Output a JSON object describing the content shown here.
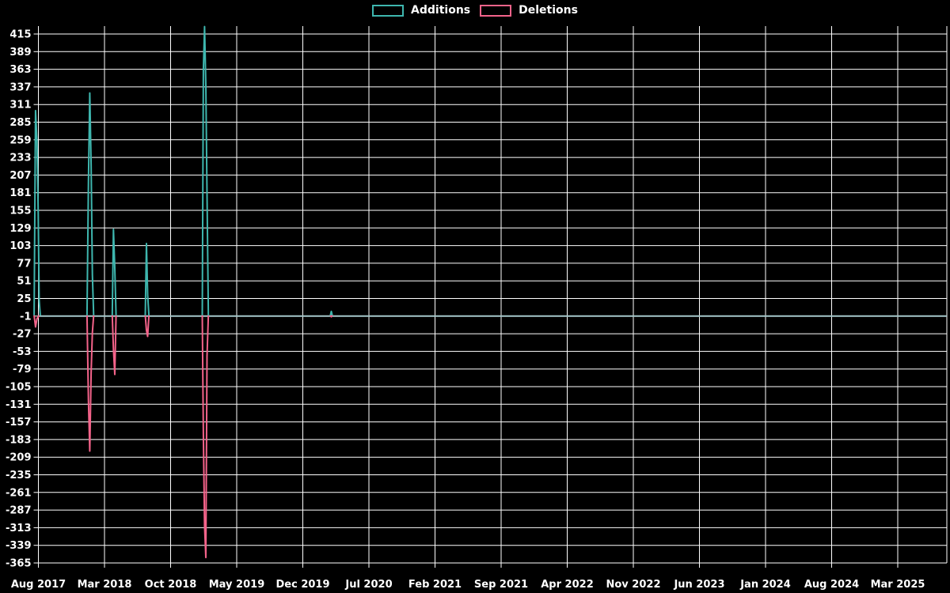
{
  "legend": {
    "additions_label": "Additions",
    "deletions_label": "Deletions",
    "additions_color": "#3eb6ae",
    "deletions_color": "#f4638a"
  },
  "chart_data": {
    "type": "line",
    "title": "",
    "xlabel": "",
    "ylabel": "",
    "legend_position": "top-center",
    "grid": true,
    "background_color": "#000000",
    "gridline_color": "#ffffff",
    "tick_label_color": "#ffffff",
    "zero_line_color": "#a6c8ca",
    "zero_line_value": -1,
    "y_range": [
      -365,
      415
    ],
    "y_ticks": [
      415,
      389,
      363,
      337,
      311,
      285,
      259,
      233,
      207,
      181,
      155,
      129,
      103,
      77,
      51,
      25,
      -1,
      -27,
      -53,
      -79,
      -105,
      -131,
      -157,
      -183,
      -209,
      -235,
      -261,
      -287,
      -313,
      -339,
      -365
    ],
    "x_tick_labels": [
      "Aug 2017",
      "Mar 2018",
      "Oct 2018",
      "May 2019",
      "Dec 2019",
      "Jul 2020",
      "Feb 2021",
      "Sep 2021",
      "Apr 2022",
      "Nov 2022",
      "Jun 2023",
      "Jan 2024",
      "Aug 2024",
      "Mar 2025"
    ],
    "x_tick_interval_months": 7,
    "x_unit": "months_after_Aug_2017",
    "series_names": [
      "Additions",
      "Deletions"
    ],
    "series_colors": [
      "#3eb6ae",
      "#f4638a"
    ],
    "points_format": [
      "x_months",
      "additions",
      "deletions"
    ],
    "points": [
      [
        -0.45,
        0,
        0
      ],
      [
        -0.3,
        302,
        -17
      ],
      [
        -0.15,
        258,
        -5
      ],
      [
        -0.02,
        150,
        -2
      ],
      [
        0.08,
        22,
        0
      ],
      [
        0.2,
        0,
        0
      ],
      [
        5.15,
        0,
        0
      ],
      [
        5.3,
        195,
        -124
      ],
      [
        5.44,
        328,
        -200
      ],
      [
        5.58,
        222,
        -85
      ],
      [
        5.72,
        60,
        -25
      ],
      [
        5.85,
        0,
        0
      ],
      [
        7.82,
        0,
        0
      ],
      [
        7.95,
        127,
        -50
      ],
      [
        8.09,
        70,
        -87
      ],
      [
        8.22,
        0,
        0
      ],
      [
        11.32,
        0,
        0
      ],
      [
        11.44,
        106,
        -22
      ],
      [
        11.57,
        30,
        -31
      ],
      [
        11.7,
        0,
        0
      ],
      [
        17.35,
        0,
        0
      ],
      [
        17.47,
        362,
        -176
      ],
      [
        17.6,
        426,
        -310
      ],
      [
        17.73,
        339,
        -357
      ],
      [
        17.86,
        180,
        -60
      ],
      [
        18.0,
        0,
        0
      ],
      [
        30.92,
        0,
        0
      ],
      [
        31.02,
        6,
        -2
      ],
      [
        31.12,
        0,
        0
      ]
    ]
  }
}
